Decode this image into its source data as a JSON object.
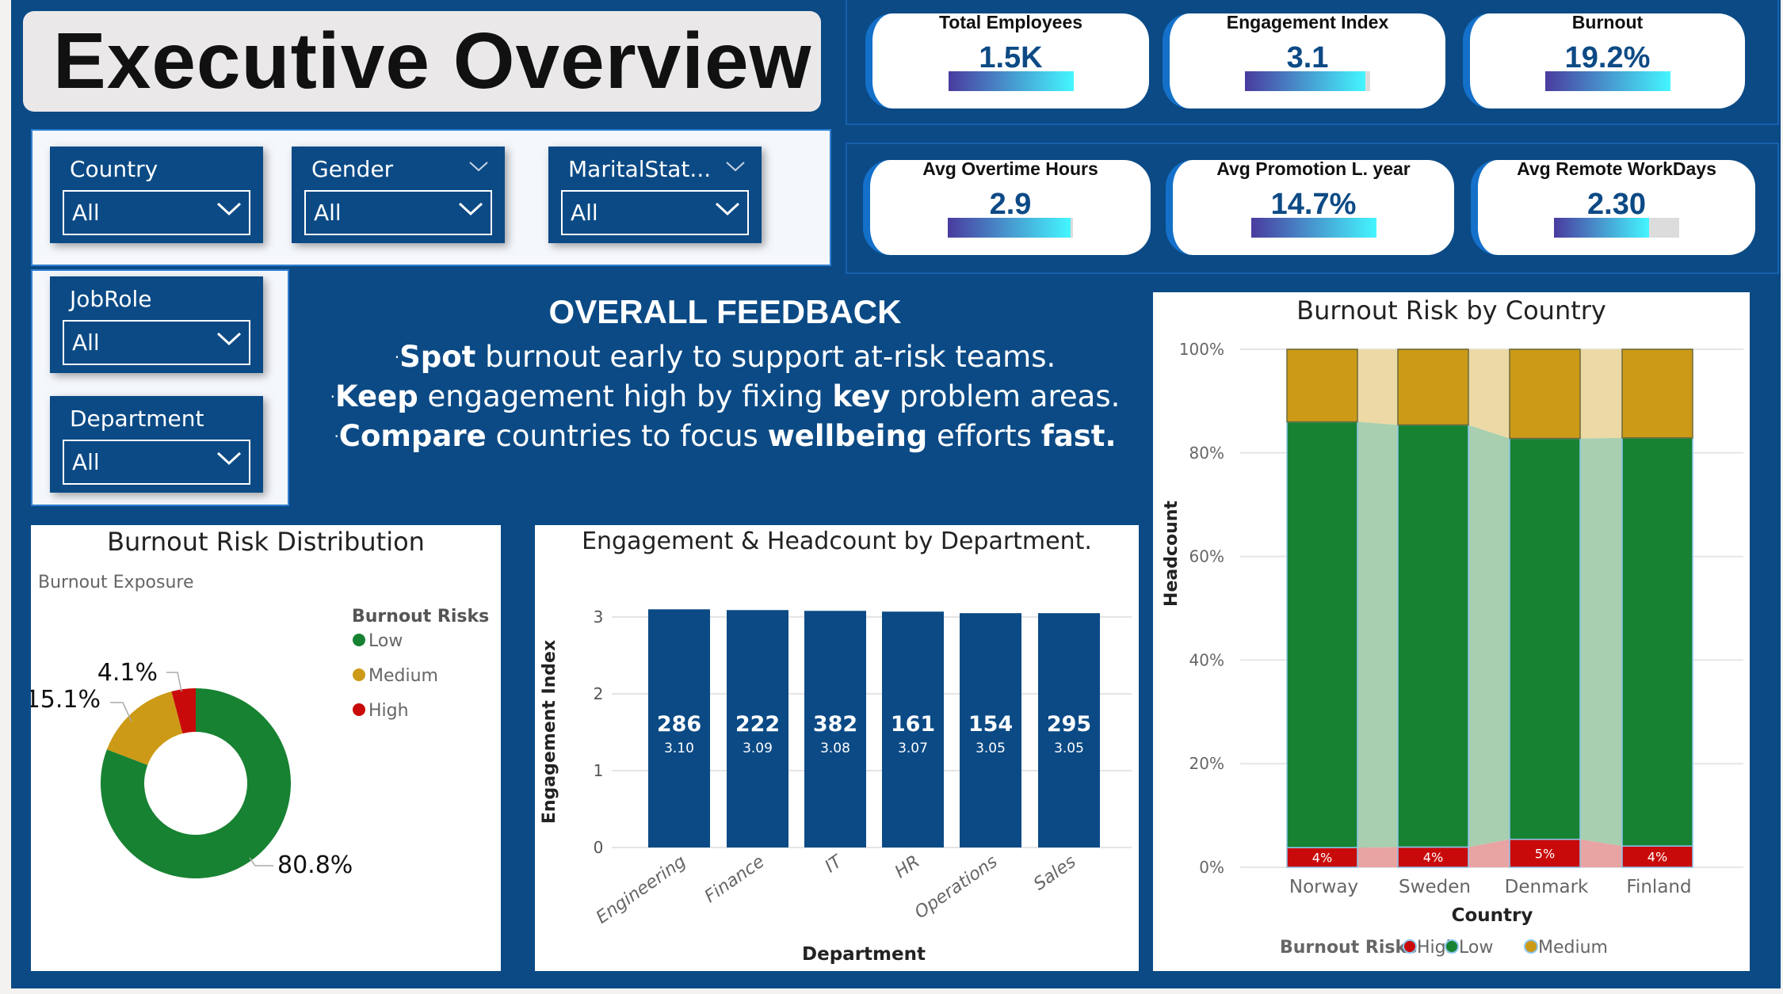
{
  "header": {
    "title": "Executive Overview"
  },
  "slicers": [
    {
      "label": "Country",
      "value": "All",
      "header_chevron": false
    },
    {
      "label": "Gender",
      "value": "All",
      "header_chevron": true
    },
    {
      "label": "MaritalStat...",
      "value": "All",
      "header_chevron": true
    },
    {
      "label": "JobRole",
      "value": "All",
      "header_chevron": false
    },
    {
      "label": "Department",
      "value": "All",
      "header_chevron": false
    }
  ],
  "kpis": [
    {
      "title": "Total Employees",
      "value": "1.5K",
      "progress": 1.0
    },
    {
      "title": "Engagement Index",
      "value": "3.1",
      "progress": 0.96
    },
    {
      "title": "Burnout",
      "value": "19.2%",
      "progress": 1.0
    },
    {
      "title": "Avg Overtime Hours",
      "value": "2.9",
      "progress": 0.98
    },
    {
      "title": "Avg Promotion L. year",
      "value": "14.7%",
      "progress": 1.0
    },
    {
      "title": "Avg Remote WorkDays",
      "value": "2.30",
      "progress": 0.76
    }
  ],
  "feedback": {
    "title": "OVERALL FEEDBACK",
    "lines": [
      [
        {
          "t": "Spot",
          "b": true
        },
        {
          "t": " burnout early to support at-risk teams.",
          "b": false
        }
      ],
      [
        {
          "t": "Keep",
          "b": true
        },
        {
          "t": " engagement high by fixing ",
          "b": false
        },
        {
          "t": "key",
          "b": true
        },
        {
          "t": " problem areas.",
          "b": false
        }
      ],
      [
        {
          "t": "Compare",
          "b": true
        },
        {
          "t": " countries to focus ",
          "b": false
        },
        {
          "t": "wellbeing",
          "b": true
        },
        {
          "t": " efforts ",
          "b": false
        },
        {
          "t": "fast.",
          "b": true
        }
      ]
    ]
  },
  "colors": {
    "low": "#178232",
    "medium": "#cc9a16",
    "high": "#c90a0a",
    "bar": "#0b4a85",
    "background": "#0b4a85"
  },
  "chart_data": [
    {
      "type": "pie",
      "title": "Burnout Risk Distribution",
      "subtitle": "Burnout Exposure",
      "legend_title": "Burnout Risks",
      "legend_position": "right",
      "categories": [
        "Low",
        "Medium",
        "High"
      ],
      "values": [
        80.8,
        15.1,
        4.1
      ],
      "labels": [
        "80.8%",
        "15.1%",
        "4.1%"
      ]
    },
    {
      "type": "bar",
      "title": "Engagement & Headcount by Department.",
      "xlabel": "Department",
      "ylabel": "Engagement Index",
      "ylim": [
        0,
        3
      ],
      "yticks": [
        "0",
        "1",
        "2",
        "3"
      ],
      "grid": true,
      "categories": [
        "Engineering",
        "Finance",
        "IT",
        "HR",
        "Operations",
        "Sales"
      ],
      "values": [
        3.1,
        3.09,
        3.08,
        3.07,
        3.05,
        3.05
      ],
      "value_labels": [
        "3.10",
        "3.09",
        "3.08",
        "3.07",
        "3.05",
        "3.05"
      ],
      "headcount_labels": [
        "286",
        "222",
        "382",
        "161",
        "154",
        "295"
      ]
    },
    {
      "type": "bar",
      "stacked": "100%",
      "title": "Burnout Risk by Country",
      "xlabel": "Country",
      "ylabel": "Headcount",
      "ylim": [
        0,
        100
      ],
      "yticks": [
        "0%",
        "20%",
        "40%",
        "60%",
        "80%",
        "100%"
      ],
      "grid": true,
      "legend_title": "Burnout Risks",
      "legend_position": "bottom",
      "categories": [
        "Norway",
        "Sweden",
        "Denmark",
        "Finland"
      ],
      "series": [
        {
          "name": "High",
          "values": [
            3.8,
            3.9,
            5.4,
            4.1
          ],
          "labels": [
            "4%",
            "4%",
            "5%",
            "4%"
          ]
        },
        {
          "name": "Low",
          "values": [
            82.2,
            81.5,
            77.4,
            78.8
          ]
        },
        {
          "name": "Medium",
          "values": [
            14.0,
            14.6,
            17.2,
            17.1
          ]
        }
      ]
    }
  ]
}
